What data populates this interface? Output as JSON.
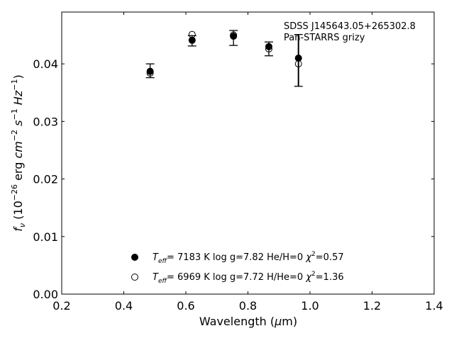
{
  "chart_data": {
    "type": "scatter",
    "xlabel": "Wavelength (μm)",
    "ylabel": "f_ν (10^-26 erg cm^-2 s^-1 Hz^-1)",
    "xlim": [
      0.2,
      1.4
    ],
    "ylim": [
      0.0,
      0.049
    ],
    "xticks": [
      "0.2",
      "0.4",
      "0.6",
      "0.8",
      "1.0",
      "1.2",
      "1.4"
    ],
    "yticks": [
      "0.00",
      "0.01",
      "0.02",
      "0.03",
      "0.04"
    ],
    "grid": false,
    "legend_position": "lower-center",
    "annotation": {
      "line1": "SDSS J145643.05+265302.8",
      "line2": "Pan-STARRS grizy"
    },
    "observed": {
      "x": [
        0.4849,
        0.6201,
        0.7535,
        0.8674,
        0.9628
      ],
      "y": [
        0.0388,
        0.044,
        0.0445,
        0.0426,
        0.0406
      ],
      "err": [
        0.0012,
        0.0009,
        0.0013,
        0.0012,
        0.0045
      ]
    },
    "series": [
      {
        "name": "T_eff= 7183 K log g=7.82 He/H=0 χ2=0.57",
        "marker": "filled-circle",
        "x": [
          0.4849,
          0.6201,
          0.7535,
          0.8674,
          0.9628
        ],
        "y": [
          0.0387,
          0.0441,
          0.0448,
          0.043,
          0.041
        ]
      },
      {
        "name": "T_eff= 6969 K log g=7.72 H/He=0 χ2=1.36",
        "marker": "open-circle",
        "x": [
          0.4849,
          0.6201,
          0.7535,
          0.8674,
          0.9628
        ],
        "y": [
          0.0384,
          0.0451,
          0.045,
          0.0426,
          0.04
        ]
      }
    ],
    "legend": [
      {
        "marker": "filled-circle",
        "teff_value": "7183 K",
        "logg": "log g=7.82",
        "comp": "He/H=0",
        "chi": "=0.57"
      },
      {
        "marker": "open-circle",
        "teff_value": "6969 K",
        "logg": "log g=7.72",
        "comp": "H/He=0",
        "chi": "=1.36"
      }
    ]
  }
}
